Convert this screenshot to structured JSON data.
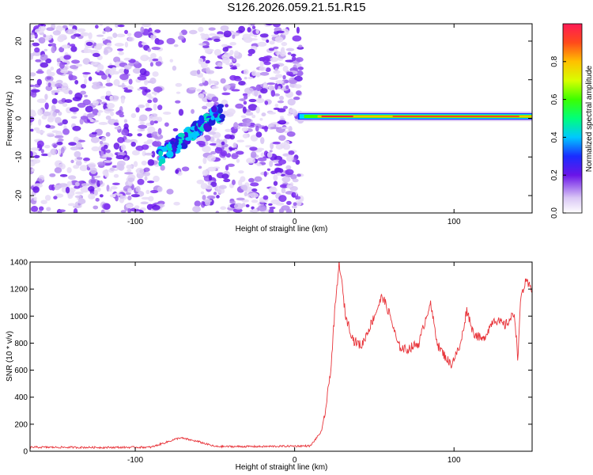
{
  "title": "S126.2026.059.21.51.R15",
  "chart_data": [
    {
      "type": "heatmap",
      "xlabel": "Height of straight line (km)",
      "ylabel": "Frequency (Hz)",
      "xlim": [
        -166,
        149
      ],
      "ylim": [
        -24.5,
        24.5
      ],
      "xticks": [
        -100,
        0,
        100
      ],
      "yticks": [
        -20,
        -10,
        0,
        10,
        20
      ],
      "colorbar": {
        "label": "Normalized spectral amplitude",
        "range": [
          0,
          1
        ],
        "ticks": [
          "0.0",
          "0.2",
          "0.4",
          "0.6",
          "0.8"
        ]
      },
      "features": [
        {
          "name": "ionospheric echo",
          "x": [
            -85,
            -45
          ],
          "y": [
            -10,
            2
          ]
        },
        {
          "name": "ground echo",
          "x": [
            2,
            149
          ],
          "y": [
            0,
            0.8
          ]
        }
      ]
    },
    {
      "type": "line",
      "xlabel": "Height of straight line (km)",
      "ylabel": "SNR (10 * v/v)",
      "xlim": [
        -166,
        149
      ],
      "ylim": [
        0,
        1400
      ],
      "xticks": [
        -100,
        0,
        100
      ],
      "yticks": [
        0,
        200,
        400,
        600,
        800,
        1000,
        1200,
        1400
      ],
      "color": "#e8343a",
      "series_points": [
        [
          -166,
          30
        ],
        [
          -120,
          28
        ],
        [
          -90,
          30
        ],
        [
          -72,
          100
        ],
        [
          -60,
          70
        ],
        [
          -50,
          35
        ],
        [
          -20,
          35
        ],
        [
          10,
          40
        ],
        [
          17,
          150
        ],
        [
          20,
          350
        ],
        [
          23,
          650
        ],
        [
          25,
          1000
        ],
        [
          28,
          1400
        ],
        [
          32,
          1000
        ],
        [
          37,
          820
        ],
        [
          42,
          780
        ],
        [
          50,
          1000
        ],
        [
          55,
          1150
        ],
        [
          60,
          1000
        ],
        [
          65,
          780
        ],
        [
          70,
          750
        ],
        [
          78,
          800
        ],
        [
          85,
          1100
        ],
        [
          90,
          780
        ],
        [
          98,
          640
        ],
        [
          104,
          780
        ],
        [
          108,
          1050
        ],
        [
          112,
          880
        ],
        [
          118,
          820
        ],
        [
          125,
          980
        ],
        [
          132,
          930
        ],
        [
          138,
          1020
        ],
        [
          140,
          690
        ],
        [
          142,
          1150
        ],
        [
          145,
          1250
        ],
        [
          149,
          1200
        ]
      ]
    }
  ]
}
